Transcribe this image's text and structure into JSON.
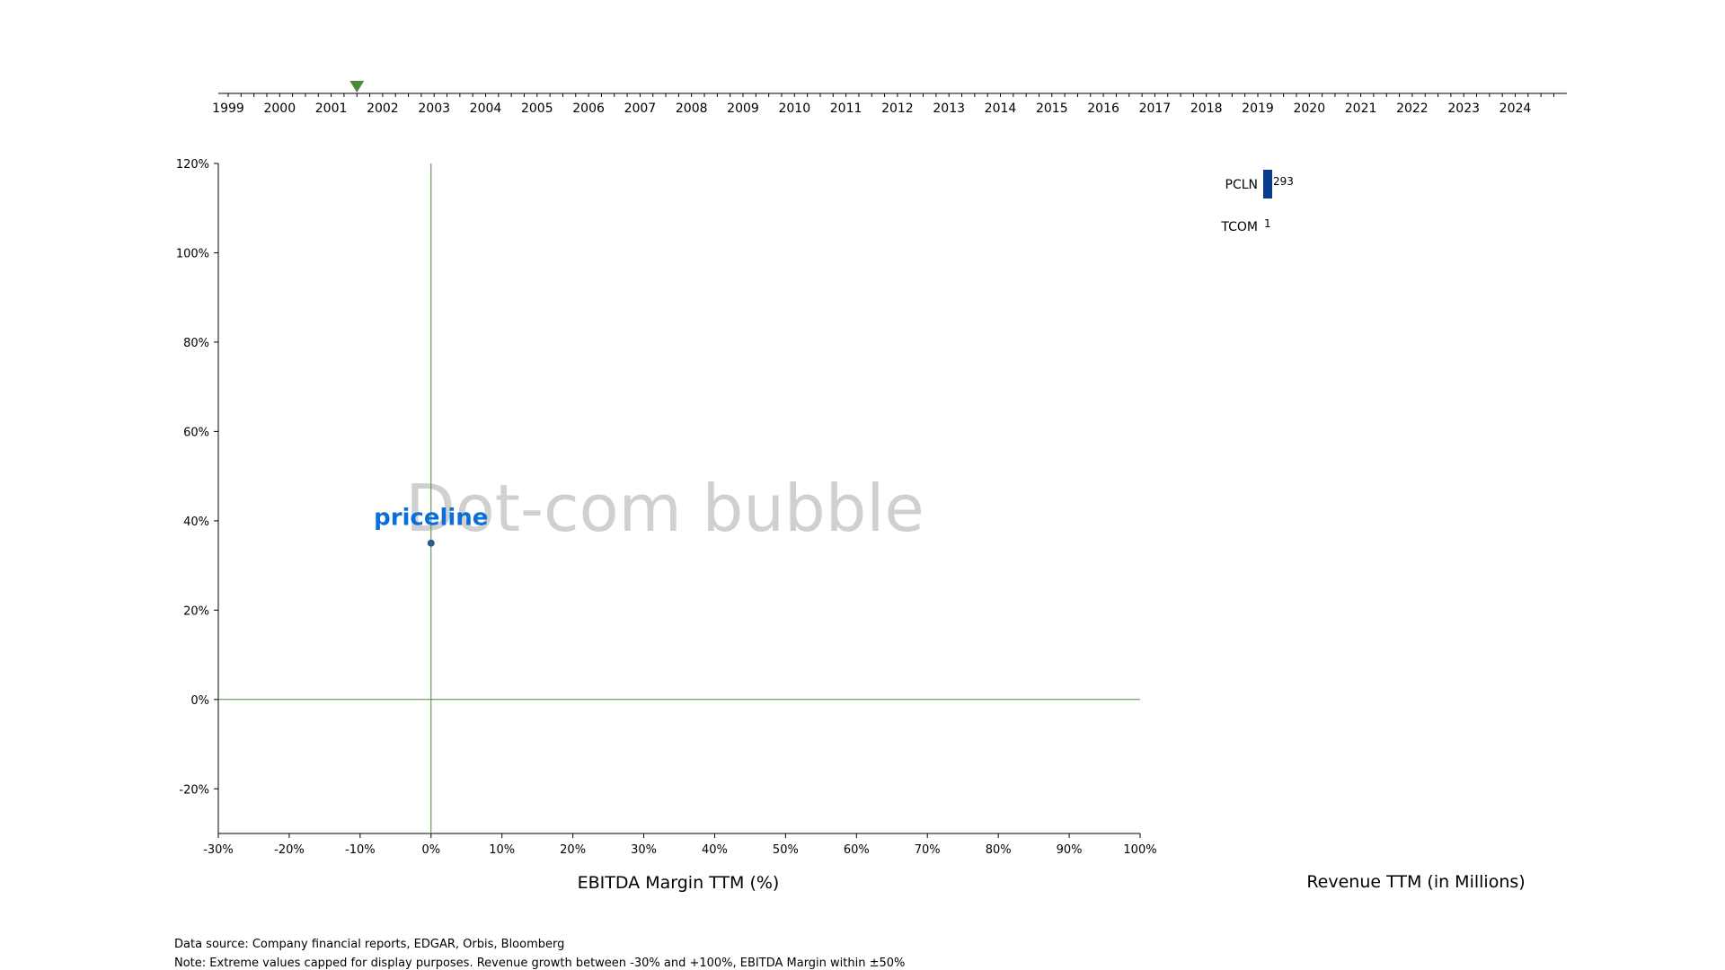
{
  "timeline": {
    "years": [
      "1999",
      "2000",
      "2001",
      "2002",
      "2003",
      "2004",
      "2005",
      "2006",
      "2007",
      "2008",
      "2009",
      "2010",
      "2011",
      "2012",
      "2013",
      "2014",
      "2015",
      "2016",
      "2017",
      "2018",
      "2019",
      "2020",
      "2021",
      "2022",
      "2023",
      "2024"
    ],
    "current_position": 2001.5,
    "marker_color": "#4a8a3c"
  },
  "chart_data": [
    {
      "type": "scatter",
      "title": "",
      "watermark": "Dot-com bubble",
      "xlabel": "EBITDA Margin TTM (%)",
      "ylabel": "",
      "xlim": [
        -30,
        100
      ],
      "ylim": [
        -30,
        120
      ],
      "x_ticks": [
        "-30%",
        "-20%",
        "-10%",
        "0%",
        "10%",
        "20%",
        "30%",
        "40%",
        "50%",
        "60%",
        "70%",
        "80%",
        "90%",
        "100%"
      ],
      "y_ticks": [
        "-20%",
        "0%",
        "20%",
        "40%",
        "60%",
        "80%",
        "100%",
        "120%"
      ],
      "reference_lines": {
        "x": 0,
        "y": 0,
        "color": "#4a8a3c"
      },
      "points": [
        {
          "name": "priceline",
          "x": 0,
          "y": 35,
          "color": "#2c5a8c",
          "logo_color": "#0a6fd8"
        }
      ]
    },
    {
      "type": "bar",
      "orientation": "horizontal",
      "xlabel": "Revenue TTM (in Millions)",
      "categories": [
        "PCLN",
        "TCOM"
      ],
      "values": [
        293,
        1
      ],
      "value_labels": [
        "293",
        "1"
      ],
      "bar_color": "#0b3b8c"
    }
  ],
  "footnotes": {
    "source": "Data source: Company financial reports, EDGAR, Orbis, Bloomberg",
    "note": "Note: Extreme values capped for display purposes. Revenue growth between -30% and +100%, EBITDA Margin within ±50%"
  }
}
